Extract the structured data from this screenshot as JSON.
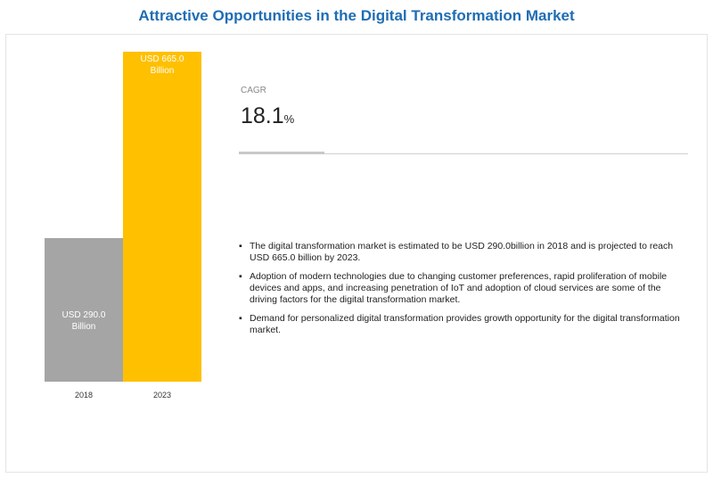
{
  "chart_data": {
    "type": "bar",
    "title": "Attractive Opportunities in the Digital Transformation Market",
    "categories": [
      "2018",
      "2023"
    ],
    "values": [
      290.0,
      665.0
    ],
    "value_labels": [
      "USD 290.0 Billion",
      "USD 665.0 Billion"
    ],
    "colors": [
      "#a5a5a5",
      "#ffc000"
    ]
  },
  "cagr": {
    "label": "CAGR",
    "value": "18.1",
    "unit": "%"
  },
  "bullets": [
    "The digital transformation market is estimated to be USD 290.0billion in 2018 and is projected to reach USD 665.0 billion by 2023.",
    "Adoption of modern technologies due to changing customer preferences, rapid proliferation of mobile devices and apps, and increasing penetration of IoT and adoption of cloud services are some of the driving factors for the digital transformation market.",
    "Demand for personalized digital transformation provides growth opportunity for the digital transformation market."
  ]
}
